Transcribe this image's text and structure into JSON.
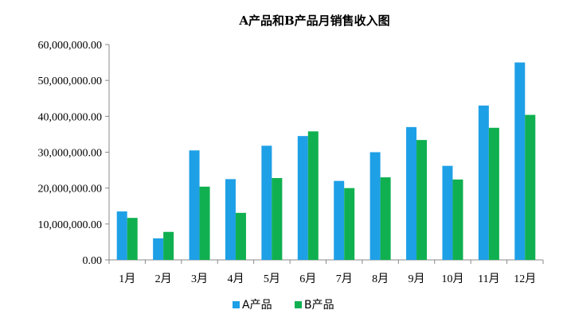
{
  "chart_data": {
    "type": "bar",
    "title": "A产品和B产品月销售收入图",
    "xlabel": "",
    "ylabel": "",
    "categories": [
      "1月",
      "2月",
      "3月",
      "4月",
      "5月",
      "6月",
      "7月",
      "8月",
      "9月",
      "10月",
      "11月",
      "12月"
    ],
    "series": [
      {
        "name": "A产品",
        "color": "#1ea0e6",
        "values": [
          13500000,
          6000000,
          30500000,
          22500000,
          31800000,
          34500000,
          22000000,
          30000000,
          37000000,
          26200000,
          43000000,
          55000000
        ]
      },
      {
        "name": "B产品",
        "color": "#10b050",
        "values": [
          11700000,
          7800000,
          20400000,
          13100000,
          22800000,
          35800000,
          20000000,
          23000000,
          33400000,
          22400000,
          36800000,
          40400000
        ]
      }
    ],
    "ylim": [
      0,
      60000000
    ],
    "yticks": [
      0,
      10000000,
      20000000,
      30000000,
      40000000,
      50000000,
      60000000
    ],
    "ytick_labels": [
      "0.00",
      "10,000,000.00",
      "20,000,000.00",
      "30,000,000.00",
      "40,000,000.00",
      "50,000,000.00",
      "60,000,000.00"
    ],
    "grid": false,
    "legend_position": "bottom"
  }
}
